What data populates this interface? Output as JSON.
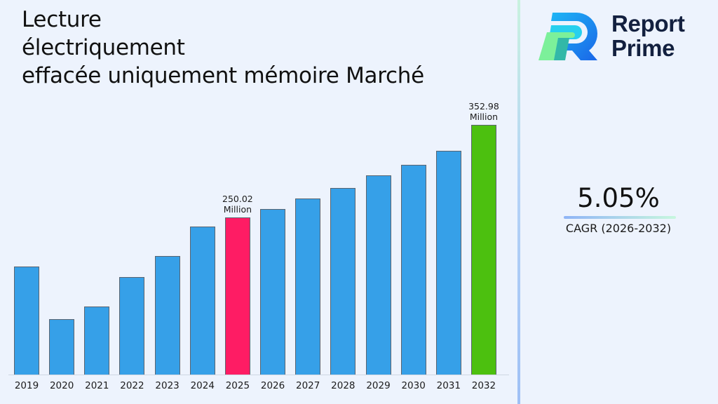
{
  "title": {
    "lines": [
      "Lecture",
      "électriquement",
      "effacée uniquement mémoire Marché"
    ]
  },
  "logo": {
    "line1": "Report",
    "line2": "Prime"
  },
  "cagr": {
    "value": "5.05%",
    "label": "CAGR (2026-2032)"
  },
  "colors": {
    "default_bar": "#36a0e8",
    "highlight_start": "#fe1c64",
    "highlight_end": "#4cc00f",
    "background": "#edf3fd"
  },
  "chart_data": {
    "type": "bar",
    "title": "Lecture électriquement effacée uniquement mémoire Marché",
    "xlabel": "",
    "ylabel": "",
    "categories": [
      "2019",
      "2020",
      "2021",
      "2022",
      "2023",
      "2024",
      "2025",
      "2026",
      "2027",
      "2028",
      "2029",
      "2030",
      "2031",
      "2032"
    ],
    "values": [
      195.4,
      136.9,
      150.9,
      183.7,
      207.1,
      239.9,
      250.02,
      259.4,
      271.1,
      282.8,
      296.8,
      308.5,
      324.1,
      352.98
    ],
    "units": "Million",
    "annotations": [
      {
        "category": "2025",
        "line1": "250.02",
        "line2": "Million"
      },
      {
        "category": "2032",
        "line1": "352.98",
        "line2": "Million"
      }
    ],
    "highlight": {
      "2025": "#fe1c64",
      "2032": "#4cc00f"
    },
    "grid": false,
    "legend": null,
    "yaxis_visible": false
  }
}
